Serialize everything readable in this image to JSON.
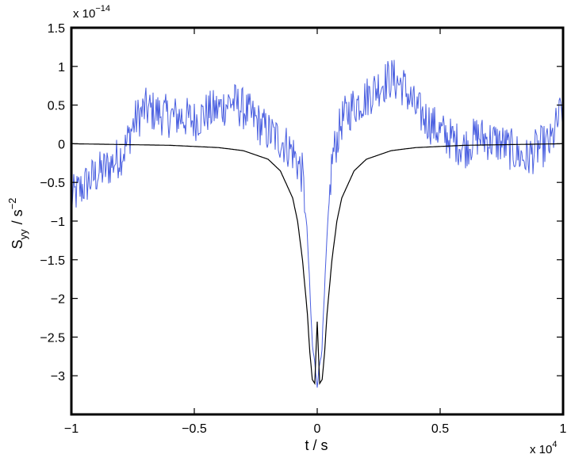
{
  "chart_data": {
    "type": "line",
    "xlabel": "t / s",
    "ylabel_main": "S",
    "ylabel_sub": "yy",
    "ylabel_unit": "/ s",
    "ylabel_unit_exp": "−2",
    "x_exponent_prefix": "x 10",
    "x_exponent_power": "4",
    "y_exponent_prefix": "x 10",
    "y_exponent_power": "−14",
    "xlim": [
      -1,
      1
    ],
    "ylim": [
      -3.5,
      1.5
    ],
    "xticks": [
      -1,
      -0.5,
      0,
      0.5,
      1
    ],
    "xtick_labels": [
      "−1",
      "−0.5",
      "0",
      "0.5",
      "1"
    ],
    "yticks": [
      1.5,
      1,
      0.5,
      0,
      -0.5,
      -1,
      -1.5,
      -2,
      -2.5,
      -3
    ],
    "ytick_labels": [
      "1.5",
      "1",
      "0.5",
      "0",
      "−0.5",
      "−1",
      "−1.5",
      "−2",
      "−2.5",
      "−3"
    ],
    "grid": false,
    "series": [
      {
        "color": "#4a5fe0",
        "style": "noisy",
        "x": [
          -1.0,
          -0.95,
          -0.9,
          -0.85,
          -0.8,
          -0.78,
          -0.76,
          -0.74,
          -0.7,
          -0.65,
          -0.6,
          -0.55,
          -0.5,
          -0.45,
          -0.4,
          -0.35,
          -0.3,
          -0.25,
          -0.2,
          -0.15,
          -0.1,
          -0.06,
          -0.04,
          -0.02,
          0.0,
          0.02,
          0.04,
          0.06,
          0.1,
          0.15,
          0.2,
          0.25,
          0.3,
          0.35,
          0.4,
          0.45,
          0.5,
          0.55,
          0.6,
          0.65,
          0.7,
          0.75,
          0.8,
          0.85,
          0.9,
          0.95,
          1.0
        ],
        "y": [
          -0.7,
          -0.55,
          -0.4,
          -0.3,
          -0.15,
          -0.05,
          0.15,
          0.3,
          0.45,
          0.4,
          0.35,
          0.35,
          0.3,
          0.4,
          0.45,
          0.55,
          0.45,
          0.3,
          0.15,
          0.05,
          -0.1,
          -0.4,
          -1.2,
          -2.6,
          -3.1,
          -2.6,
          -1.2,
          -0.2,
          0.3,
          0.5,
          0.6,
          0.75,
          0.85,
          0.75,
          0.45,
          0.3,
          0.15,
          0.05,
          -0.05,
          0.1,
          0.05,
          0.0,
          -0.1,
          -0.2,
          -0.05,
          0.0,
          0.5
        ]
      },
      {
        "color": "#000000",
        "style": "smooth",
        "x": [
          -1.0,
          -0.8,
          -0.6,
          -0.4,
          -0.3,
          -0.2,
          -0.15,
          -0.1,
          -0.08,
          -0.06,
          -0.04,
          -0.03,
          -0.02,
          -0.01,
          0.0,
          0.01,
          0.02,
          0.03,
          0.04,
          0.06,
          0.08,
          0.1,
          0.15,
          0.2,
          0.3,
          0.4,
          0.6,
          0.8,
          1.0
        ],
        "y": [
          0.0,
          -0.01,
          -0.02,
          -0.05,
          -0.09,
          -0.2,
          -0.35,
          -0.7,
          -1.0,
          -1.5,
          -2.2,
          -2.7,
          -3.05,
          -3.1,
          -2.3,
          -3.1,
          -3.05,
          -2.7,
          -2.2,
          -1.5,
          -1.0,
          -0.7,
          -0.35,
          -0.2,
          -0.09,
          -0.05,
          -0.02,
          -0.01,
          0.0
        ]
      }
    ]
  }
}
